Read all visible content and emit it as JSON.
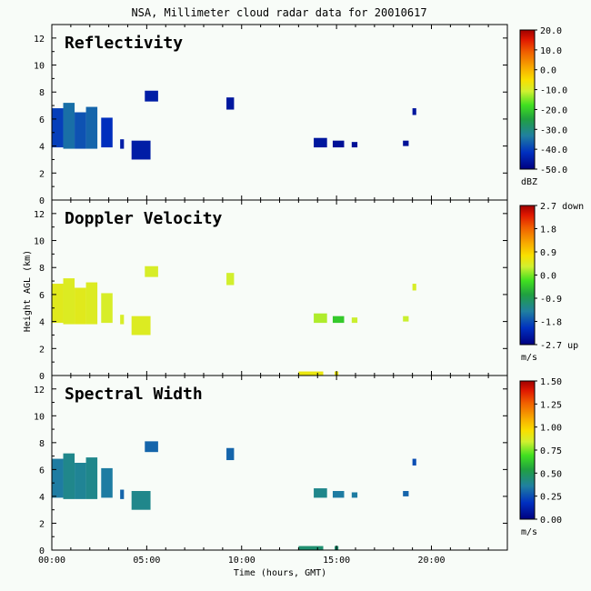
{
  "title": "NSA, Millimeter cloud radar data for 20010617",
  "xlabel": "Time (hours, GMT)",
  "ylabel": "Height AGL (km)",
  "x_ticks": [
    "00:00",
    "05:00",
    "10:00",
    "15:00",
    "20:00"
  ],
  "chart_data": [
    {
      "type": "heatmap",
      "title": "Reflectivity",
      "unit": "dBZ",
      "xlim": [
        0,
        24
      ],
      "ylim": [
        0,
        13
      ],
      "yticks": [
        0,
        2,
        4,
        6,
        8,
        10,
        12
      ],
      "colorbar": {
        "min": -50,
        "max": 20,
        "labels": [
          "20.0",
          "10.0",
          "0.0",
          "-10.0",
          "-20.0",
          "-30.0",
          "-40.0",
          "-50.0"
        ]
      },
      "regions": [
        {
          "t0": 0.0,
          "t1": 0.6,
          "h0": 3.9,
          "h1": 6.8,
          "value": -40
        },
        {
          "t0": 0.6,
          "t1": 1.2,
          "h0": 3.8,
          "h1": 7.2,
          "value": -35
        },
        {
          "t0": 1.2,
          "t1": 1.8,
          "h0": 3.8,
          "h1": 6.5,
          "value": -38
        },
        {
          "t0": 1.8,
          "t1": 2.4,
          "h0": 3.8,
          "h1": 6.9,
          "value": -36
        },
        {
          "t0": 2.6,
          "t1": 3.2,
          "h0": 3.9,
          "h1": 6.1,
          "value": -42
        },
        {
          "t0": 3.6,
          "t1": 3.8,
          "h0": 3.8,
          "h1": 4.5,
          "value": -45
        },
        {
          "t0": 4.2,
          "t1": 5.2,
          "h0": 3.0,
          "h1": 4.4,
          "value": -45
        },
        {
          "t0": 4.9,
          "t1": 5.6,
          "h0": 7.3,
          "h1": 8.1,
          "value": -45
        },
        {
          "t0": 9.2,
          "t1": 9.6,
          "h0": 6.7,
          "h1": 7.6,
          "value": -46
        },
        {
          "t0": 13.8,
          "t1": 14.5,
          "h0": 3.9,
          "h1": 4.6,
          "value": -46
        },
        {
          "t0": 14.8,
          "t1": 15.4,
          "h0": 3.9,
          "h1": 4.4,
          "value": -47
        },
        {
          "t0": 15.8,
          "t1": 16.1,
          "h0": 3.9,
          "h1": 4.3,
          "value": -47
        },
        {
          "t0": 18.5,
          "t1": 18.8,
          "h0": 4.0,
          "h1": 4.4,
          "value": -47
        },
        {
          "t0": 19.0,
          "t1": 19.2,
          "h0": 6.3,
          "h1": 6.8,
          "value": -46
        }
      ]
    },
    {
      "type": "heatmap",
      "title": "Doppler Velocity",
      "unit": "m/s",
      "xlim": [
        0,
        24
      ],
      "ylim": [
        0,
        13
      ],
      "yticks": [
        0,
        2,
        4,
        6,
        8,
        10,
        12
      ],
      "colorbar": {
        "min": -2.7,
        "max": 2.7,
        "labels": [
          "2.7 down",
          "1.8",
          "0.9",
          "0.0",
          "-0.9",
          "-1.8",
          "-2.7 up"
        ]
      },
      "regions": [
        {
          "t0": 0.0,
          "t1": 0.6,
          "h0": 3.9,
          "h1": 6.8,
          "value": 0.5
        },
        {
          "t0": 0.6,
          "t1": 1.2,
          "h0": 3.8,
          "h1": 7.2,
          "value": 0.45
        },
        {
          "t0": 1.2,
          "t1": 1.8,
          "h0": 3.8,
          "h1": 6.5,
          "value": 0.5
        },
        {
          "t0": 1.8,
          "t1": 2.4,
          "h0": 3.8,
          "h1": 6.9,
          "value": 0.45
        },
        {
          "t0": 2.6,
          "t1": 3.2,
          "h0": 3.9,
          "h1": 6.1,
          "value": 0.4
        },
        {
          "t0": 3.6,
          "t1": 3.8,
          "h0": 3.8,
          "h1": 4.5,
          "value": 0.4
        },
        {
          "t0": 4.2,
          "t1": 5.2,
          "h0": 3.0,
          "h1": 4.4,
          "value": 0.45
        },
        {
          "t0": 4.9,
          "t1": 5.6,
          "h0": 7.3,
          "h1": 8.1,
          "value": 0.4
        },
        {
          "t0": 9.2,
          "t1": 9.6,
          "h0": 6.7,
          "h1": 7.6,
          "value": 0.35
        },
        {
          "t0": 13.8,
          "t1": 14.5,
          "h0": 3.9,
          "h1": 4.6,
          "value": 0.2
        },
        {
          "t0": 14.8,
          "t1": 15.4,
          "h0": 3.9,
          "h1": 4.4,
          "value": -0.4
        },
        {
          "t0": 15.8,
          "t1": 16.1,
          "h0": 3.9,
          "h1": 4.3,
          "value": 0.3
        },
        {
          "t0": 18.5,
          "t1": 18.8,
          "h0": 4.0,
          "h1": 4.4,
          "value": 0.3
        },
        {
          "t0": 19.0,
          "t1": 19.2,
          "h0": 6.3,
          "h1": 6.8,
          "value": 0.4
        },
        {
          "t0": 13.0,
          "t1": 14.3,
          "h0": 0.0,
          "h1": 0.3,
          "value": 0.6
        },
        {
          "t0": 14.9,
          "t1": 15.1,
          "h0": 0.0,
          "h1": 0.3,
          "value": 0.6
        }
      ]
    },
    {
      "type": "heatmap",
      "title": "Spectral Width",
      "unit": "m/s",
      "xlim": [
        0,
        24
      ],
      "ylim": [
        0,
        13
      ],
      "yticks": [
        0,
        2,
        4,
        6,
        8,
        10,
        12
      ],
      "colorbar": {
        "min": 0,
        "max": 1.5,
        "labels": [
          "1.50",
          "1.25",
          "1.00",
          "0.75",
          "0.50",
          "0.25",
          "0.00"
        ]
      },
      "regions": [
        {
          "t0": 0.0,
          "t1": 0.6,
          "h0": 3.9,
          "h1": 6.8,
          "value": 0.35
        },
        {
          "t0": 0.6,
          "t1": 1.2,
          "h0": 3.8,
          "h1": 7.2,
          "value": 0.4
        },
        {
          "t0": 1.2,
          "t1": 1.8,
          "h0": 3.8,
          "h1": 6.5,
          "value": 0.38
        },
        {
          "t0": 1.8,
          "t1": 2.4,
          "h0": 3.8,
          "h1": 6.9,
          "value": 0.4
        },
        {
          "t0": 2.6,
          "t1": 3.2,
          "h0": 3.9,
          "h1": 6.1,
          "value": 0.35
        },
        {
          "t0": 3.6,
          "t1": 3.8,
          "h0": 3.8,
          "h1": 4.5,
          "value": 0.3
        },
        {
          "t0": 4.2,
          "t1": 5.2,
          "h0": 3.0,
          "h1": 4.4,
          "value": 0.4
        },
        {
          "t0": 4.9,
          "t1": 5.6,
          "h0": 7.3,
          "h1": 8.1,
          "value": 0.3
        },
        {
          "t0": 9.2,
          "t1": 9.6,
          "h0": 6.7,
          "h1": 7.6,
          "value": 0.3
        },
        {
          "t0": 13.8,
          "t1": 14.5,
          "h0": 3.9,
          "h1": 4.6,
          "value": 0.4
        },
        {
          "t0": 14.8,
          "t1": 15.4,
          "h0": 3.9,
          "h1": 4.4,
          "value": 0.35
        },
        {
          "t0": 15.8,
          "t1": 16.1,
          "h0": 3.9,
          "h1": 4.3,
          "value": 0.35
        },
        {
          "t0": 18.5,
          "t1": 18.8,
          "h0": 4.0,
          "h1": 4.4,
          "value": 0.3
        },
        {
          "t0": 19.0,
          "t1": 19.2,
          "h0": 6.3,
          "h1": 6.8,
          "value": 0.25
        },
        {
          "t0": 13.0,
          "t1": 14.3,
          "h0": 0.0,
          "h1": 0.3,
          "value": 0.45
        },
        {
          "t0": 14.9,
          "t1": 15.1,
          "h0": 0.0,
          "h1": 0.3,
          "value": 0.45
        }
      ]
    }
  ]
}
